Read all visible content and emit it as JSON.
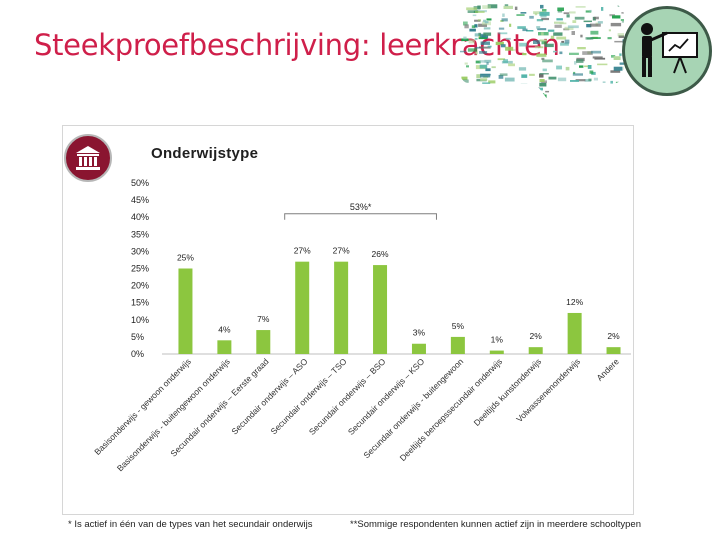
{
  "header": {
    "title": "Steekproefbeschrijving: leerkrachten"
  },
  "colors": {
    "title": "#cf1f4a",
    "bar": "#8cc63f",
    "panel_icon": "#8a1530",
    "logo_bg": "#a7d4b4"
  },
  "icons": {
    "top_right": "presenter-at-board-icon",
    "panel": "bank-building-icon",
    "decoration": "word-cloud-speech-bubble"
  },
  "chart_data": {
    "type": "bar",
    "title": "Onderwijstype",
    "categories": [
      "Basisonderwijs - gewoon onderwijs",
      "Basisonderwijs - buitengewoon onderwijs",
      "Secundair onderwijs – Eerste graad",
      "Secundair onderwijs – ASO",
      "Secundair onderwijs – TSO",
      "Secundair onderwijs – BSO",
      "Secundair onderwijs – KSO",
      "Secundair onderwijs - buitengewoon",
      "Deeltijds beroepssecundair onderwijs",
      "Deeltijds kunstonderwijs",
      "Volwassenenonderwijs",
      "Andere"
    ],
    "values": [
      25,
      4,
      7,
      27,
      27,
      26,
      3,
      5,
      1,
      2,
      12,
      2
    ],
    "value_labels": [
      "25%",
      "4%",
      "7%",
      "27%",
      "27%",
      "26%",
      "3%",
      "5%",
      "1%",
      "2%",
      "12%",
      "2%"
    ],
    "bracket_label": "53%*",
    "bracket_categories": [
      "Secundair onderwijs – ASO",
      "Secundair onderwijs – TSO",
      "Secundair onderwijs – BSO",
      "Secundair onderwijs – KSO"
    ],
    "y_ticks": [
      "0%",
      "5%",
      "10%",
      "15%",
      "20%",
      "25%",
      "30%",
      "35%",
      "40%",
      "45%",
      "50%"
    ],
    "ylim": [
      0,
      50
    ],
    "grid": false,
    "legend": "none"
  },
  "footnotes": {
    "left": "* Is actief in één van de types van het secundair onderwijs",
    "right": "**Sommige respondenten kunnen actief zijn in meerdere schooltypen"
  }
}
